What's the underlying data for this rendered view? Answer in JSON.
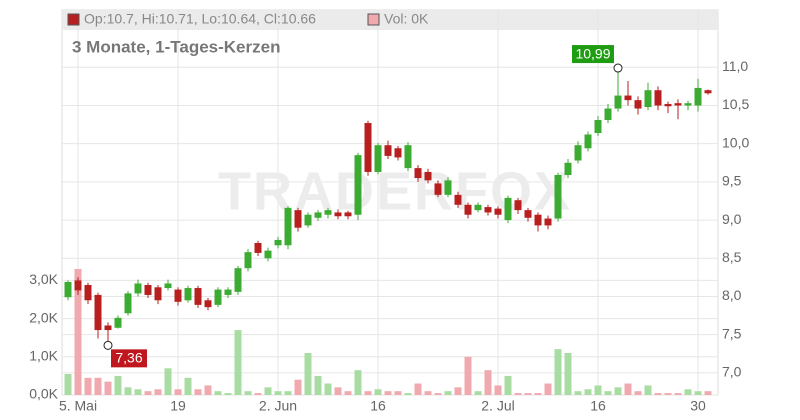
{
  "chart_data": {
    "type": "candlestick",
    "ohlc_label": "Op:10.7, Hi:10.71, Lo:10.64, Cl:10.66",
    "volume_label": "Vol: 0K",
    "subtitle": "3 Monate, 1-Tages-Kerzen",
    "watermark": "TRADERFOX",
    "categories": [
      null,
      "5. Mai",
      null,
      null,
      null,
      null,
      null,
      null,
      null,
      null,
      null,
      "19",
      null,
      null,
      null,
      null,
      null,
      null,
      null,
      null,
      null,
      "2. Jun",
      null,
      null,
      null,
      null,
      null,
      null,
      null,
      null,
      null,
      "16",
      null,
      null,
      null,
      null,
      null,
      null,
      null,
      null,
      null,
      null,
      null,
      "2. Jul",
      null,
      null,
      null,
      null,
      null,
      null,
      null,
      null,
      null,
      "16",
      null,
      null,
      null,
      null,
      null,
      null,
      null,
      null,
      null,
      "30",
      null
    ],
    "open": [
      7.99,
      8.21,
      8.15,
      8.02,
      7.62,
      7.59,
      7.78,
      8.04,
      8.15,
      8.12,
      8.11,
      8.09,
      7.95,
      8.11,
      7.95,
      7.89,
      8.02,
      8.06,
      8.37,
      8.7,
      8.5,
      8.67,
      8.67,
      9.13,
      8.93,
      9.03,
      9.07,
      9.1,
      9.1,
      9.07,
      10.27,
      9.63,
      9.98,
      9.94,
      9.68,
      9.68,
      9.63,
      9.48,
      9.33,
      9.33,
      9.2,
      9.13,
      9.17,
      9.15,
      9.0,
      9.26,
      9.13,
      9.07,
      9.02,
      9.02,
      9.59,
      9.78,
      9.94,
      10.14,
      10.31,
      10.46,
      10.63,
      10.57,
      10.48,
      10.7,
      10.52,
      10.53,
      10.5,
      10.5,
      10.7
    ],
    "high": [
      8.21,
      8.25,
      8.18,
      8.05,
      7.66,
      7.75,
      8.07,
      8.22,
      8.18,
      8.15,
      8.22,
      8.12,
      8.14,
      8.14,
      7.98,
      8.12,
      8.12,
      8.4,
      8.62,
      8.73,
      8.64,
      8.78,
      9.18,
      9.16,
      9.1,
      9.13,
      9.16,
      9.14,
      9.12,
      9.88,
      10.3,
      10.01,
      10.04,
      9.97,
      10.02,
      9.72,
      9.67,
      9.52,
      9.56,
      9.37,
      9.23,
      9.23,
      9.2,
      9.18,
      9.32,
      9.29,
      9.16,
      9.1,
      9.06,
      9.62,
      9.8,
      10.03,
      10.16,
      10.36,
      10.52,
      10.99,
      10.82,
      10.62,
      10.8,
      10.75,
      10.55,
      10.58,
      10.56,
      10.85,
      10.71
    ],
    "low": [
      7.95,
      8.02,
      7.9,
      7.45,
      7.36,
      7.58,
      7.75,
      8.0,
      7.98,
      7.9,
      8.08,
      7.88,
      7.92,
      7.85,
      7.82,
      7.86,
      7.98,
      8.02,
      8.33,
      8.53,
      8.46,
      8.63,
      8.62,
      8.85,
      8.9,
      8.99,
      9.02,
      9.01,
      9.01,
      9.0,
      9.58,
      9.6,
      9.8,
      9.78,
      9.64,
      9.5,
      9.48,
      9.3,
      9.3,
      9.16,
      9.02,
      9.1,
      9.06,
      9.02,
      8.96,
      9.08,
      8.98,
      8.85,
      8.88,
      8.98,
      9.55,
      9.74,
      9.9,
      10.1,
      10.27,
      10.42,
      10.5,
      10.38,
      10.44,
      10.44,
      10.4,
      10.32,
      10.44,
      10.42,
      10.64
    ],
    "close": [
      8.19,
      8.08,
      7.95,
      7.56,
      7.56,
      7.72,
      8.04,
      8.17,
      8.02,
      7.95,
      8.17,
      7.93,
      8.11,
      7.89,
      7.86,
      8.09,
      8.09,
      8.37,
      8.58,
      8.57,
      8.6,
      8.74,
      9.16,
      8.9,
      9.07,
      9.1,
      9.13,
      9.05,
      9.05,
      9.85,
      9.63,
      9.98,
      9.84,
      9.82,
      9.98,
      9.55,
      9.52,
      9.33,
      9.52,
      9.2,
      9.07,
      9.2,
      9.1,
      9.07,
      9.29,
      9.13,
      9.03,
      8.93,
      8.93,
      9.59,
      9.75,
      9.98,
      10.12,
      10.31,
      10.46,
      10.63,
      10.57,
      10.46,
      10.7,
      10.5,
      10.49,
      10.5,
      10.53,
      10.73,
      10.66
    ],
    "volume": [
      550,
      3300,
      450,
      450,
      350,
      500,
      200,
      150,
      100,
      150,
      700,
      150,
      450,
      150,
      250,
      100,
      50,
      1700,
      100,
      50,
      200,
      100,
      100,
      400,
      1100,
      500,
      300,
      200,
      100,
      650,
      100,
      150,
      100,
      100,
      50,
      300,
      100,
      50,
      100,
      200,
      1000,
      100,
      650,
      250,
      500,
      50,
      50,
      50,
      300,
      1200,
      1100,
      100,
      150,
      250,
      100,
      200,
      300,
      100,
      250,
      50,
      50,
      50,
      150,
      100,
      100
    ],
    "up_color": "#3cab32",
    "down_color": "#b81f1f",
    "volume_up_color": "#a9dca2",
    "volume_down_color": "#f0a9ae",
    "max_label": {
      "value": 10.99,
      "label": "10,99"
    },
    "min_label": {
      "value": 7.36,
      "label": "7,36"
    },
    "ylim": [
      6.71,
      11.75
    ],
    "yticks": [
      {
        "value": 7,
        "label": "7,0"
      },
      {
        "value": 7.5,
        "label": "7,5"
      },
      {
        "value": 8,
        "label": "8,0"
      },
      {
        "value": 8.5,
        "label": "8,5"
      },
      {
        "value": 9,
        "label": "9,0"
      },
      {
        "value": 9.5,
        "label": "9,5"
      },
      {
        "value": 10,
        "label": "10,0"
      },
      {
        "value": 10.5,
        "label": "10,5"
      },
      {
        "value": 11,
        "label": "11,0"
      }
    ],
    "y2lim": [
      0,
      10080
    ],
    "y2ticks": [
      {
        "value": 0,
        "label": "0,0K"
      },
      {
        "value": 1000,
        "label": "1,0K"
      },
      {
        "value": 2000,
        "label": "2,0K"
      },
      {
        "value": 3000,
        "label": "3,0K"
      }
    ],
    "grid": true
  }
}
